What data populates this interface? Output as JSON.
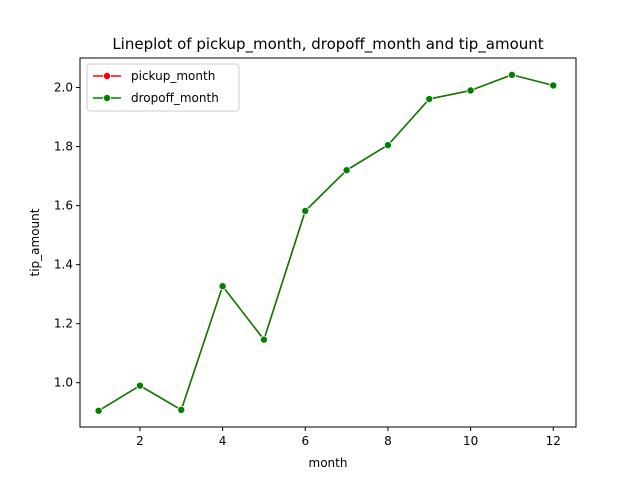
{
  "chart_data": {
    "type": "line",
    "title": "Lineplot of pickup_month, dropoff_month and tip_amount",
    "xlabel": "month",
    "ylabel": "tip_amount",
    "xlim": [
      0.55,
      12.55
    ],
    "ylim": [
      0.85,
      2.1
    ],
    "xticks": [
      2,
      4,
      6,
      8,
      10,
      12
    ],
    "yticks": [
      1.0,
      1.2,
      1.4,
      1.6,
      1.8,
      2.0
    ],
    "grid": false,
    "legend_position": "upper-left",
    "x": [
      1,
      2,
      3,
      4,
      5,
      6,
      7,
      8,
      9,
      10,
      11,
      12
    ],
    "series": [
      {
        "name": "pickup_month",
        "color": "#ff0000",
        "values": [
          0.905,
          0.99,
          0.908,
          1.327,
          1.146,
          1.582,
          1.72,
          1.805,
          1.961,
          1.99,
          2.043,
          2.007
        ]
      },
      {
        "name": "dropoff_month",
        "color": "#008000",
        "values": [
          0.905,
          0.99,
          0.908,
          1.327,
          1.146,
          1.582,
          1.72,
          1.805,
          1.961,
          1.99,
          2.043,
          2.007
        ]
      }
    ]
  }
}
